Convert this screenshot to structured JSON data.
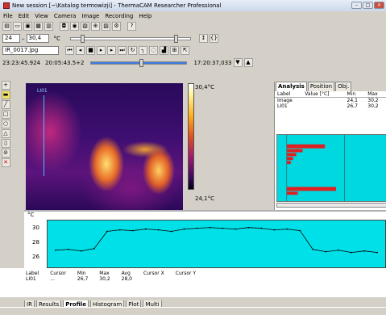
{
  "window": {
    "title": "New session [~\\Katalog termowizji] - ThermaCAM Researcher Professional",
    "buttons": [
      "–",
      "□",
      "×"
    ]
  },
  "menu": [
    "File",
    "Edit",
    "View",
    "Camera",
    "Image",
    "Recording",
    "Help"
  ],
  "toolbar2": {
    "min_value": "24",
    "dash": "–",
    "max_value": "30,4",
    "unit": "°C"
  },
  "toolbar3": {
    "file": "IR_0017.jpg"
  },
  "toolbar4": {
    "time_start": "23:23:45.924",
    "date": "20:05:43.5+2",
    "time_end": "17:20:37,033"
  },
  "scale": {
    "max": "30,4°C",
    "min": "24,1°C"
  },
  "image": {
    "line_label": "LI01"
  },
  "panel": {
    "tabs": [
      "Analysis",
      "Position",
      "Obj."
    ],
    "columns": [
      "Label",
      "Value [°C]",
      "Min",
      "Max"
    ],
    "rows": [
      {
        "label": "Image",
        "value": "",
        "min": "24,1",
        "max": "30,2"
      },
      {
        "label": "LI01",
        "value": "",
        "min": "26,7",
        "max": "30,2"
      }
    ]
  },
  "plot": {
    "unit": "°C",
    "yticks": [
      "30",
      "28",
      "26"
    ]
  },
  "profile_table": {
    "columns": [
      "Label",
      "Cursor",
      "Min",
      "Max",
      "Avg",
      "Cursor X",
      "Cursor Y"
    ],
    "rows": [
      {
        "label": "LI01",
        "cursor": "...",
        "min": "26,7",
        "max": "30,2",
        "avg": "28,0",
        "cx": "",
        "cy": ""
      }
    ]
  },
  "bottom_tabs": [
    "IR",
    "Results",
    "Profile",
    "Histogram",
    "Plot",
    "Multi"
  ],
  "chart_data": {
    "type": "line",
    "ylabel": "°C",
    "ylim": [
      25,
      31
    ],
    "x": [
      0,
      4,
      8,
      12,
      16,
      20,
      24,
      28,
      32,
      36,
      40,
      44,
      48,
      52,
      56,
      60,
      64,
      68,
      72,
      76,
      80,
      84,
      88,
      92,
      96,
      100
    ],
    "values": [
      27.2,
      27.3,
      27.1,
      27.4,
      29.6,
      29.8,
      29.7,
      29.9,
      29.8,
      29.6,
      29.9,
      30.0,
      30.1,
      30.0,
      29.9,
      30.1,
      30.0,
      29.8,
      29.9,
      29.7,
      27.3,
      27.0,
      27.2,
      26.9,
      27.1,
      26.9
    ]
  }
}
